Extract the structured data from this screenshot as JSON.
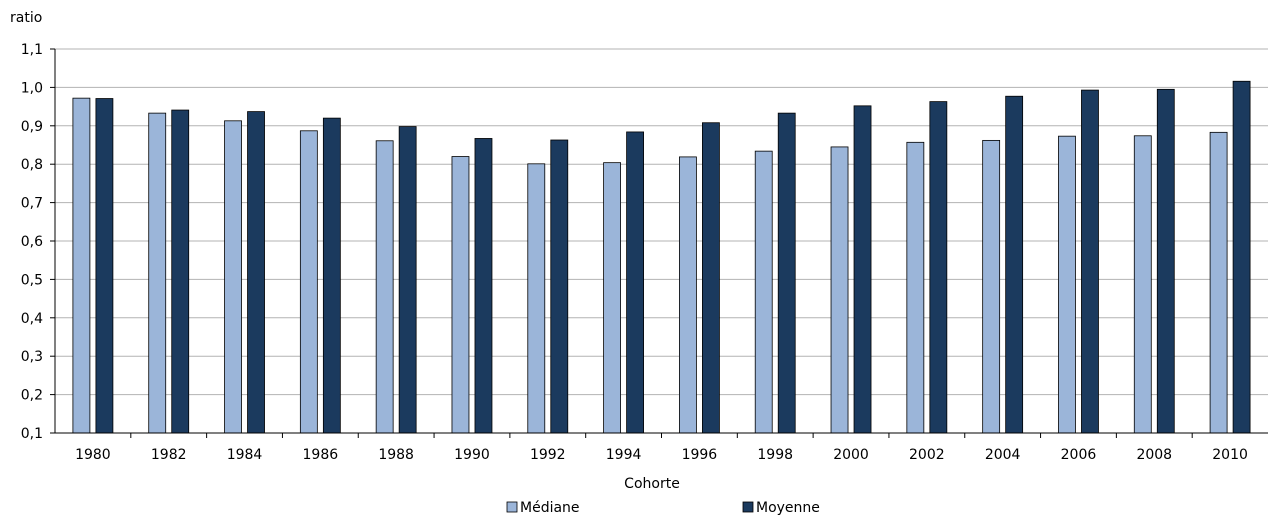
{
  "chart_data": {
    "type": "bar",
    "ylabel": "ratio",
    "xlabel": "Cohorte",
    "ylim": [
      0.1,
      1.1
    ],
    "yticks": [
      "0,1",
      "0,2",
      "0,3",
      "0,4",
      "0,5",
      "0,6",
      "0,7",
      "0,8",
      "0,9",
      "1,0",
      "1,1"
    ],
    "grid": true,
    "legend_position": "bottom",
    "categories": [
      "1980",
      "1982",
      "1984",
      "1986",
      "1988",
      "1990",
      "1992",
      "1994",
      "1996",
      "1998",
      "2000",
      "2002",
      "2004",
      "2006",
      "2008",
      "2010"
    ],
    "series": [
      {
        "name": "Médiane",
        "color": "#9bb5d9",
        "values": [
          0.972,
          0.933,
          0.913,
          0.887,
          0.861,
          0.82,
          0.801,
          0.804,
          0.819,
          0.834,
          0.845,
          0.857,
          0.862,
          0.873,
          0.874,
          0.883
        ]
      },
      {
        "name": "Moyenne",
        "color": "#1b3a5e",
        "values": [
          0.971,
          0.941,
          0.937,
          0.92,
          0.898,
          0.867,
          0.863,
          0.884,
          0.908,
          0.933,
          0.952,
          0.963,
          0.977,
          0.993,
          0.995,
          1.016
        ]
      }
    ]
  }
}
